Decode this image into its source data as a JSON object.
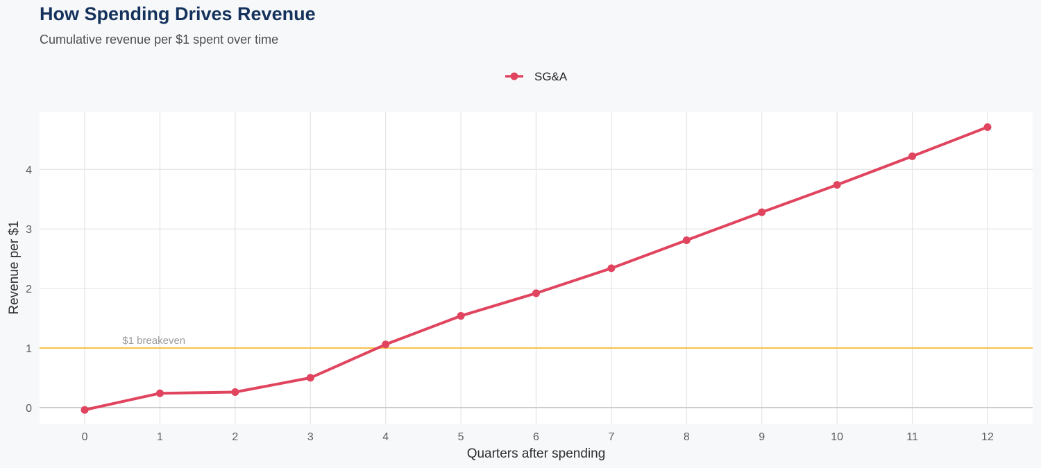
{
  "title": "How Spending Drives Revenue",
  "subtitle": "Cumulative revenue per $1 spent over time",
  "chart_data": {
    "type": "line",
    "title": "How Spending Drives Revenue",
    "subtitle": "Cumulative revenue per $1 spent over time",
    "xlabel": "Quarters after spending",
    "ylabel": "Revenue per $1",
    "x": [
      0,
      1,
      2,
      3,
      4,
      5,
      6,
      7,
      8,
      9,
      10,
      11,
      12
    ],
    "x_ticks": [
      "0",
      "1",
      "2",
      "3",
      "4",
      "5",
      "6",
      "7",
      "8",
      "9",
      "10",
      "11",
      "12"
    ],
    "y_ticks": [
      "0",
      "1",
      "2",
      "3",
      "4"
    ],
    "xlim": [
      -0.6,
      12.6
    ],
    "ylim": [
      -0.27,
      4.97
    ],
    "series": [
      {
        "name": "SG&A",
        "color": "#e0445e",
        "values": [
          -0.04,
          0.24,
          0.26,
          0.5,
          1.06,
          1.54,
          1.92,
          2.34,
          2.81,
          3.28,
          3.74,
          4.22,
          4.71
        ]
      }
    ],
    "reference_line": {
      "y": 1,
      "label": "$1 breakeven",
      "color": "#f5c24f"
    },
    "legend_position": "top",
    "grid": true
  }
}
